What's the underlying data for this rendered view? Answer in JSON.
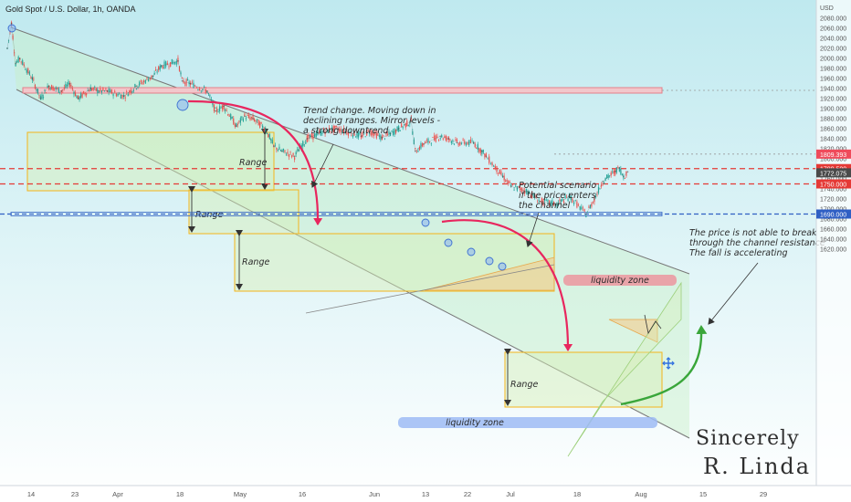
{
  "chart_data": {
    "type": "line",
    "title": "Gold Spot / U.S. Dollar, 1h, OANDA",
    "currency": "USD",
    "ylim": [
      1614,
      2090
    ],
    "y_ticks": [
      "2080.000",
      "2060.000",
      "2040.000",
      "2020.000",
      "2000.000",
      "1980.000",
      "1960.000",
      "1940.000",
      "1920.000",
      "1900.000",
      "1880.000",
      "1860.000",
      "1840.000",
      "1820.000",
      "1800.000",
      "1780.000",
      "1760.000",
      "1740.000",
      "1720.000",
      "1700.000",
      "1680.000",
      "1660.000",
      "1640.000",
      "1620.000"
    ],
    "x_ticks": [
      "14",
      "23",
      "Apr",
      "18",
      "May",
      "16",
      "Jun",
      "13",
      "22",
      "Jul",
      "18",
      "Aug",
      "15",
      "29"
    ],
    "series": [
      {
        "x": [
          "Mar 8",
          "Mar 9",
          "Mar 10",
          "Mar 11",
          "Mar 14",
          "Mar 16",
          "Mar 18",
          "Mar 21",
          "Mar 23",
          "Mar 25",
          "Mar 28",
          "Mar 30",
          "Apr 1",
          "Apr 5",
          "Apr 8",
          "Apr 12",
          "Apr 14",
          "Apr 18",
          "Apr 19",
          "Apr 21",
          "Apr 25",
          "Apr 27",
          "Apr 29",
          "May 2",
          "May 4",
          "May 6",
          "May 9",
          "May 11",
          "May 13",
          "May 16",
          "May 17",
          "May 19",
          "May 23",
          "May 26",
          "May 30",
          "Jun 1",
          "Jun 3",
          "Jun 6",
          "Jun 8",
          "Jun 10",
          "Jun 13",
          "Jun 14",
          "Jun 16",
          "Jun 20",
          "Jun 22",
          "Jun 24",
          "Jun 28",
          "Jun 30",
          "Jul 1",
          "Jul 5",
          "Jul 7",
          "Jul 11",
          "Jul 14",
          "Jul 18",
          "Jul 21",
          "Jul 25",
          "Jul 27",
          "Jul 29",
          "Aug 1",
          "Aug 2",
          "Aug 3",
          "Aug 4"
        ],
        "values": [
          2020,
          2070,
          1990,
          2000,
          1960,
          1920,
          1945,
          1935,
          1950,
          1920,
          1940,
          1935,
          1935,
          1925,
          1945,
          1965,
          1985,
          1995,
          1955,
          1950,
          1935,
          1895,
          1905,
          1865,
          1885,
          1880,
          1860,
          1825,
          1815,
          1805,
          1818,
          1840,
          1855,
          1860,
          1850,
          1845,
          1855,
          1842,
          1850,
          1860,
          1875,
          1815,
          1830,
          1845,
          1840,
          1832,
          1832,
          1815,
          1805,
          1765,
          1745,
          1735,
          1715,
          1710,
          1725,
          1690,
          1720,
          1755,
          1775,
          1782,
          1765,
          1774
        ]
      }
    ],
    "price_labels": [
      {
        "value": 1809.393,
        "text": "1809.393",
        "color": "#ef4b5b"
      },
      {
        "value": 1780.5,
        "text": "1780.500",
        "color": "#e53935"
      },
      {
        "value": 1772.075,
        "text": "1772.075",
        "color": "#4a4a4a"
      },
      {
        "value": 1750.0,
        "text": "1750.000",
        "color": "#e53935"
      },
      {
        "value": 1690.0,
        "text": "1690.000",
        "color": "#2f5fc4"
      }
    ],
    "zones": [
      {
        "label": "liquidity zone",
        "value": 1815
      },
      {
        "label": "liquidity zone",
        "value": 1680
      }
    ],
    "range_label": "Range",
    "annotations": [
      {
        "lines": [
          "Trend change. Moving down in",
          "declining ranges. Mirror levels -",
          "a strong downtrend"
        ]
      },
      {
        "lines": [
          "Potential scenario",
          "if the price enters",
          "the channel"
        ]
      },
      {
        "lines": [
          "The price is not able to break",
          "through the channel resistance",
          "The fall is accelerating"
        ]
      }
    ],
    "signature": [
      "Sincerely",
      "R. Linda"
    ],
    "colors": {
      "up": "#26a69a",
      "down": "#ef5350",
      "channel": "#c8f0c8",
      "range_border": "#f4b41a",
      "resistance_zone": "#f2c7cb",
      "liquidity_red": "#ef8a95",
      "liquidity_blue": "#9ebbf5",
      "arrow_red": "#e8265e",
      "arrow_green": "#3aa63a"
    }
  }
}
